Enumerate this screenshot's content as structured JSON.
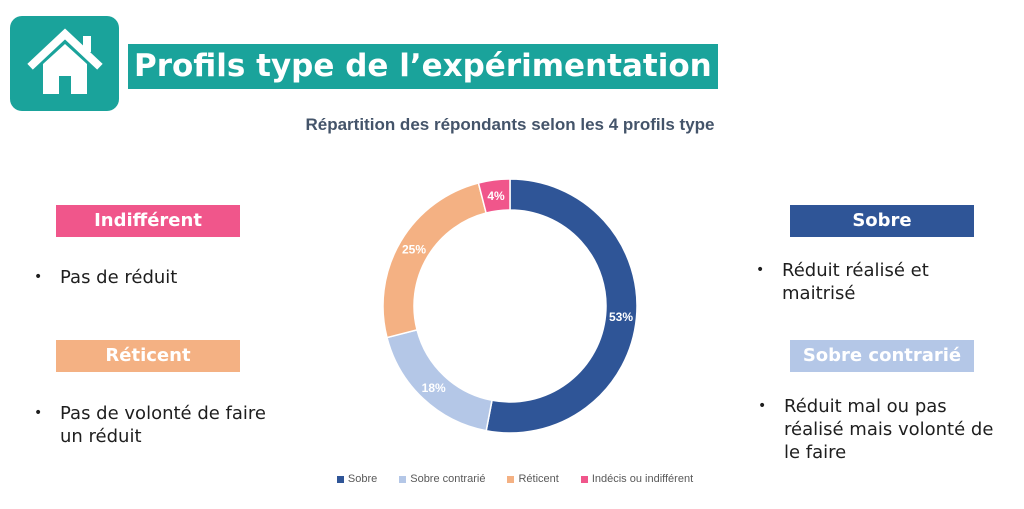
{
  "header": {
    "title": "Profils type de l’expérimentation",
    "home_icon": "home-icon"
  },
  "chart_data": {
    "type": "pie",
    "donut": true,
    "title": "Répartition des répondants selon les 4 profils type",
    "categories": [
      "Sobre",
      "Sobre contrarié",
      "Réticent",
      "Indécis ou indifférent"
    ],
    "values": [
      53,
      18,
      25,
      4
    ],
    "data_labels": [
      "53%",
      "18%",
      "25%",
      "4%"
    ],
    "colors": [
      "#2f5597",
      "#b4c7e7",
      "#f4b183",
      "#f0568b"
    ],
    "legend_position": "bottom"
  },
  "profiles": {
    "indifferent": {
      "label": "Indifférent",
      "color": "#f0568b",
      "description": "Pas de réduit"
    },
    "reticent": {
      "label": "Réticent",
      "color": "#f4b183",
      "description": "Pas de volonté de faire un réduit"
    },
    "sobre": {
      "label": "Sobre",
      "color": "#2f5597",
      "description": "Réduit réalisé et maitrisé"
    },
    "sobre_contrarie": {
      "label": "Sobre contrarié",
      "color": "#b4c7e7",
      "description": "Réduit mal ou pas réalisé mais volonté de le faire"
    }
  }
}
